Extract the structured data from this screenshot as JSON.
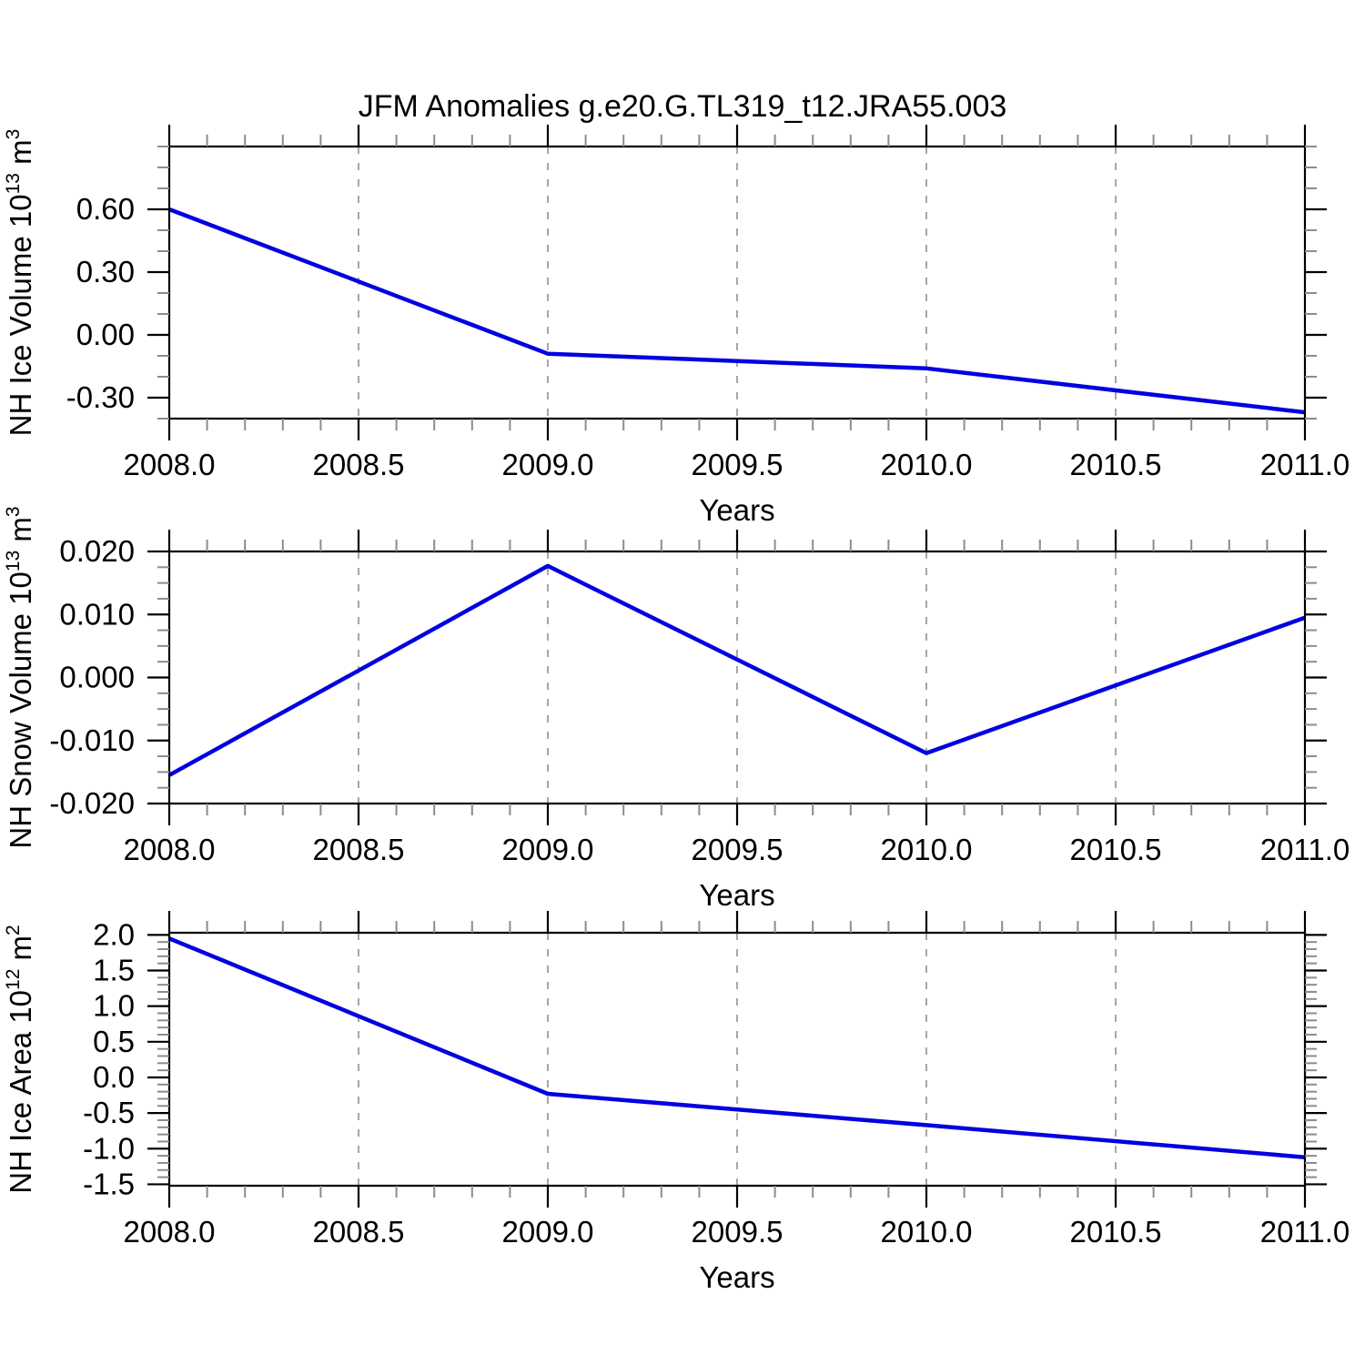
{
  "title": "JFM Anomalies g.e20.G.TL319_t12.JRA55.003",
  "colors": {
    "line": "#0000e0",
    "grid": "#a6a6a6",
    "axis": "#000000",
    "minor_tick": "#8c8c8c",
    "text": "#000000",
    "background": "#ffffff"
  },
  "x_axis": {
    "title": "Years",
    "min": 2008.0,
    "max": 2011.0,
    "major_ticks": [
      2008.0,
      2008.5,
      2009.0,
      2009.5,
      2010.0,
      2010.5,
      2011.0
    ],
    "labels": [
      "2008.0",
      "2008.5",
      "2009.0",
      "2009.5",
      "2010.0",
      "2010.5",
      "2011.0"
    ],
    "minor_step": 0.1,
    "gridlines": [
      2008.5,
      2009.0,
      2009.5,
      2010.0,
      2010.5
    ],
    "grid_style": "dashed"
  },
  "chart_data": [
    {
      "type": "line",
      "name": "NH Ice Volume",
      "ylabel": {
        "text": "NH Ice Volume 10",
        "exp": "13",
        "unit": " m",
        "unit_exp": "3"
      },
      "x": [
        2008.0,
        2009.0,
        2010.0,
        2011.0
      ],
      "values": [
        0.6,
        -0.09,
        -0.16,
        -0.37
      ],
      "ylim": [
        -0.4,
        0.9
      ],
      "yticks": {
        "values": [
          0.6,
          0.3,
          0.0,
          -0.3
        ],
        "labels": [
          "0.60",
          "0.30",
          "0.00",
          "-0.30"
        ],
        "minor_step": 0.1
      },
      "xlabel": "Years"
    },
    {
      "type": "line",
      "name": "NH Snow Volume",
      "ylabel": {
        "text": "NH Snow Volume 10",
        "exp": "13",
        "unit": " m",
        "unit_exp": "3"
      },
      "x": [
        2008.0,
        2009.0,
        2010.0,
        2011.0
      ],
      "values": [
        -0.0155,
        0.0177,
        -0.012,
        0.0095
      ],
      "ylim": [
        -0.02,
        0.02
      ],
      "yticks": {
        "values": [
          0.02,
          0.01,
          0.0,
          -0.01,
          -0.02
        ],
        "labels": [
          "0.020",
          "0.010",
          "0.000",
          "-0.010",
          "-0.020"
        ],
        "minor_step": 0.0025
      },
      "xlabel": "Years"
    },
    {
      "type": "line",
      "name": "NH Ice Area",
      "ylabel": {
        "text": "NH Ice Area 10",
        "exp": "12",
        "unit": " m",
        "unit_exp": "2"
      },
      "x": [
        2008.0,
        2009.0,
        2010.0,
        2011.0
      ],
      "values": [
        1.95,
        -0.23,
        -0.67,
        -1.12
      ],
      "ylim": [
        -1.52,
        2.03
      ],
      "yticks": {
        "values": [
          2.0,
          1.5,
          1.0,
          0.5,
          0.0,
          -0.5,
          -1.0,
          -1.5
        ],
        "labels": [
          "2.0",
          "1.5",
          "1.0",
          "0.5",
          "0.0",
          "-0.5",
          "-1.0",
          "-1.5"
        ],
        "minor_step": 0.1
      },
      "xlabel": "Years"
    }
  ]
}
